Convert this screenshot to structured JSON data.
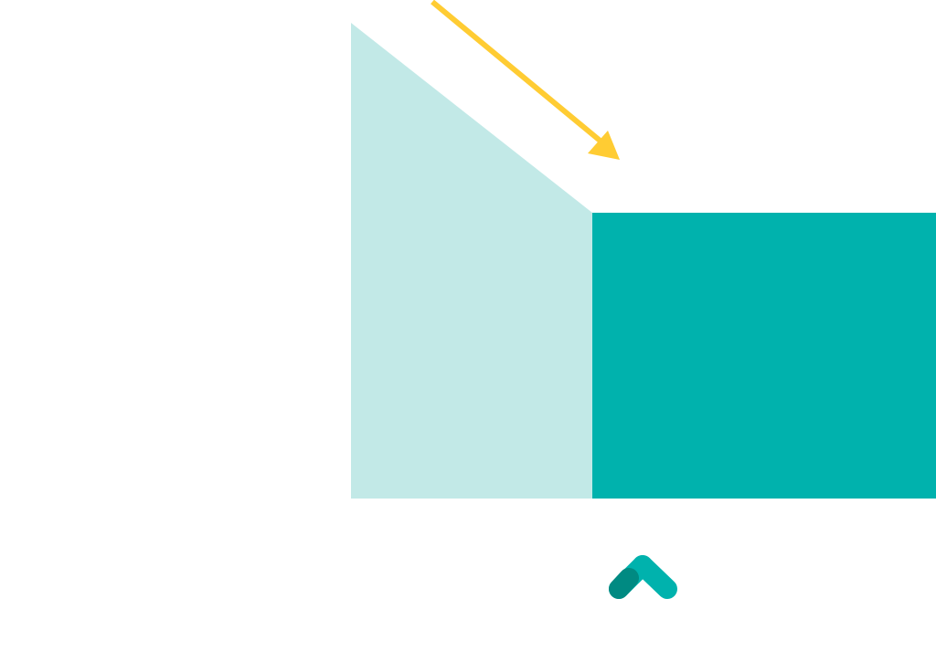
{
  "colors": {
    "background": "#ffffff",
    "light_teal": "#c2e9e7",
    "teal": "#00b2ad",
    "dark_teal": "#008a82",
    "arrow_yellow": "#ffcc33"
  },
  "icons": {
    "arrow": "arrow-down-right-icon",
    "logo": "chevron-up-logo-icon"
  }
}
